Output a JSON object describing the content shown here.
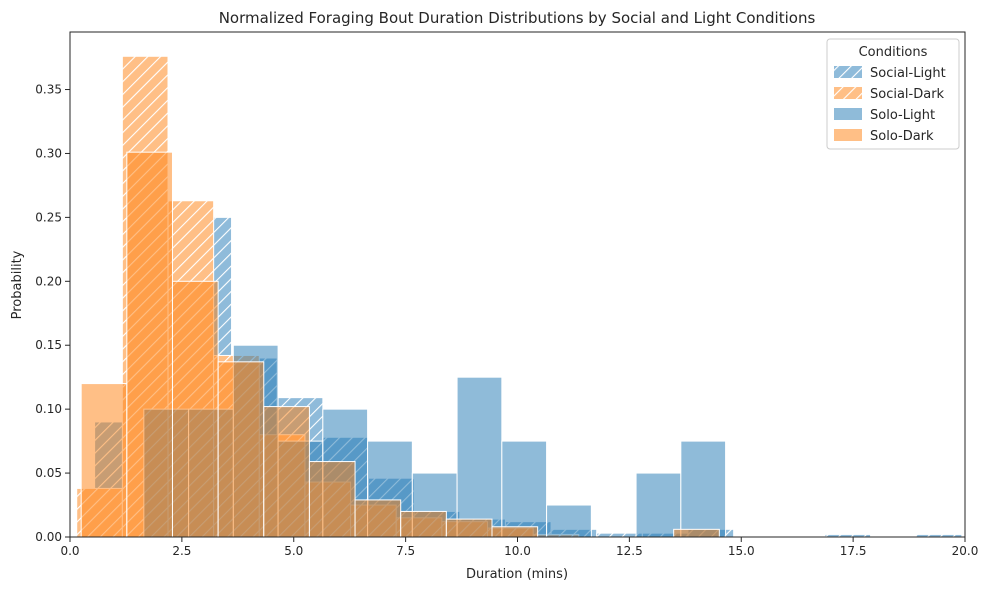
{
  "chart_data": {
    "type": "bar",
    "title": "Normalized Foraging Bout Duration Distributions by Social and Light Conditions",
    "xlabel": "Duration (mins)",
    "ylabel": "Probability",
    "xlim": [
      0,
      20
    ],
    "ylim": [
      0,
      0.395
    ],
    "xticks": [
      "0.0",
      "2.5",
      "5.0",
      "7.5",
      "10.0",
      "12.5",
      "15.0",
      "17.5",
      "20.0"
    ],
    "yticks": [
      "0.00",
      "0.05",
      "0.10",
      "0.15",
      "0.20",
      "0.25",
      "0.30",
      "0.35"
    ],
    "grid": false,
    "legend": {
      "title": "Conditions",
      "position": "top-right"
    },
    "series": [
      {
        "name": "Social-Light",
        "color": "#1f77b4",
        "hatched": true,
        "bins": [
          {
            "x0": 0.55,
            "x1": 1.57,
            "y": 0.09
          },
          {
            "x0": 1.57,
            "x1": 2.59,
            "y": 0.23
          },
          {
            "x0": 2.59,
            "x1": 3.61,
            "y": 0.25
          },
          {
            "x0": 3.61,
            "x1": 4.63,
            "y": 0.14
          },
          {
            "x0": 4.63,
            "x1": 5.65,
            "y": 0.109
          },
          {
            "x0": 5.65,
            "x1": 6.67,
            "y": 0.078
          },
          {
            "x0": 6.67,
            "x1": 7.69,
            "y": 0.046
          },
          {
            "x0": 7.69,
            "x1": 8.71,
            "y": 0.02
          },
          {
            "x0": 8.71,
            "x1": 9.73,
            "y": 0.014
          },
          {
            "x0": 9.73,
            "x1": 10.75,
            "y": 0.012
          },
          {
            "x0": 10.75,
            "x1": 11.77,
            "y": 0.006
          },
          {
            "x0": 11.77,
            "x1": 12.79,
            "y": 0.003
          },
          {
            "x0": 12.79,
            "x1": 13.81,
            "y": 0.003
          },
          {
            "x0": 13.81,
            "x1": 14.83,
            "y": 0.006
          },
          {
            "x0": 16.87,
            "x1": 17.89,
            "y": 0.002
          },
          {
            "x0": 18.91,
            "x1": 19.93,
            "y": 0.002
          }
        ]
      },
      {
        "name": "Social-Dark",
        "color": "#ff7f0e",
        "hatched": true,
        "bins": [
          {
            "x0": 0.15,
            "x1": 1.17,
            "y": 0.038
          },
          {
            "x0": 1.17,
            "x1": 2.19,
            "y": 0.376
          },
          {
            "x0": 2.19,
            "x1": 3.21,
            "y": 0.263
          },
          {
            "x0": 3.21,
            "x1": 4.23,
            "y": 0.142
          },
          {
            "x0": 4.23,
            "x1": 5.25,
            "y": 0.08
          },
          {
            "x0": 5.25,
            "x1": 6.27,
            "y": 0.043
          },
          {
            "x0": 6.27,
            "x1": 7.29,
            "y": 0.025
          },
          {
            "x0": 7.29,
            "x1": 8.31,
            "y": 0.015
          },
          {
            "x0": 8.31,
            "x1": 9.33,
            "y": 0.012
          },
          {
            "x0": 9.33,
            "x1": 10.35,
            "y": 0.007
          },
          {
            "x0": 10.35,
            "x1": 11.37,
            "y": 0.002
          }
        ]
      },
      {
        "name": "Solo-Light",
        "color": "#1f77b4",
        "hatched": false,
        "bins": [
          {
            "x0": 1.65,
            "x1": 2.65,
            "y": 0.1
          },
          {
            "x0": 2.65,
            "x1": 3.65,
            "y": 0.1
          },
          {
            "x0": 3.65,
            "x1": 4.65,
            "y": 0.15
          },
          {
            "x0": 4.65,
            "x1": 5.65,
            "y": 0.075
          },
          {
            "x0": 5.65,
            "x1": 6.65,
            "y": 0.1
          },
          {
            "x0": 6.65,
            "x1": 7.65,
            "y": 0.075
          },
          {
            "x0": 7.65,
            "x1": 8.65,
            "y": 0.05
          },
          {
            "x0": 8.65,
            "x1": 9.65,
            "y": 0.125
          },
          {
            "x0": 9.65,
            "x1": 10.65,
            "y": 0.075
          },
          {
            "x0": 10.65,
            "x1": 11.65,
            "y": 0.025
          },
          {
            "x0": 12.65,
            "x1": 13.65,
            "y": 0.05
          },
          {
            "x0": 13.65,
            "x1": 14.65,
            "y": 0.075
          }
        ]
      },
      {
        "name": "Solo-Dark",
        "color": "#ff7f0e",
        "hatched": false,
        "bins": [
          {
            "x0": 0.25,
            "x1": 1.27,
            "y": 0.12
          },
          {
            "x0": 1.27,
            "x1": 2.29,
            "y": 0.301
          },
          {
            "x0": 2.29,
            "x1": 3.31,
            "y": 0.2
          },
          {
            "x0": 3.31,
            "x1": 4.33,
            "y": 0.137
          },
          {
            "x0": 4.33,
            "x1": 5.35,
            "y": 0.102
          },
          {
            "x0": 5.35,
            "x1": 6.37,
            "y": 0.059
          },
          {
            "x0": 6.37,
            "x1": 7.39,
            "y": 0.029
          },
          {
            "x0": 7.39,
            "x1": 8.41,
            "y": 0.02
          },
          {
            "x0": 8.41,
            "x1": 9.43,
            "y": 0.014
          },
          {
            "x0": 9.43,
            "x1": 10.45,
            "y": 0.008
          },
          {
            "x0": 13.49,
            "x1": 14.51,
            "y": 0.006
          }
        ]
      }
    ]
  }
}
